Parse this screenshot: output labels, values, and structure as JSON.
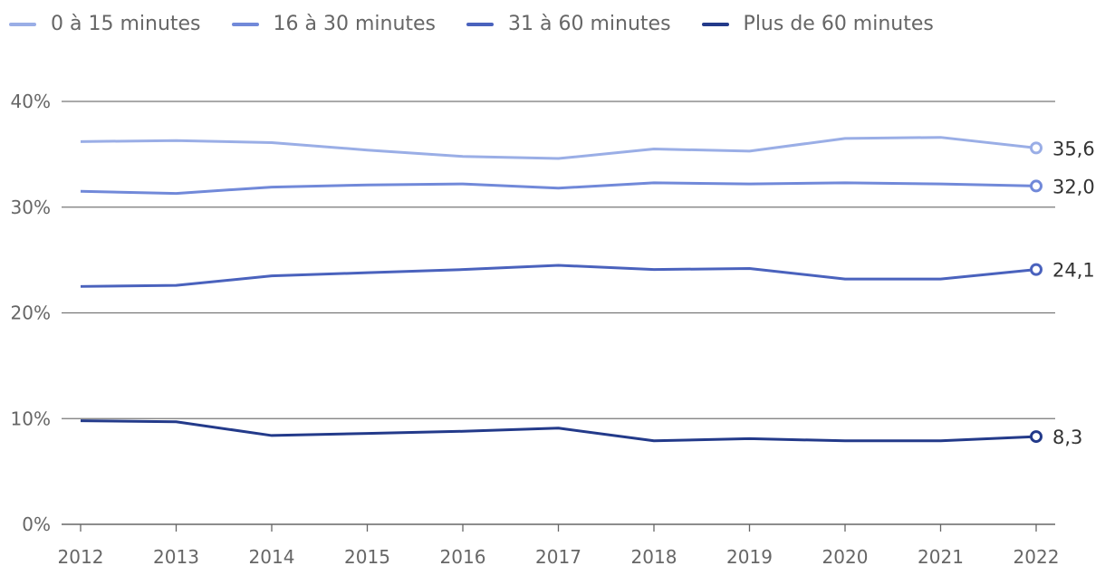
{
  "chart_data": {
    "type": "line",
    "title": "",
    "xlabel": "",
    "ylabel": "",
    "x": [
      2012,
      2013,
      2014,
      2015,
      2016,
      2017,
      2018,
      2019,
      2020,
      2021,
      2022
    ],
    "x_tick_labels": [
      "2012",
      "2013",
      "2014",
      "2015",
      "2016",
      "2017",
      "2018",
      "2019",
      "2020",
      "2021",
      "2022"
    ],
    "ylim": [
      0,
      40
    ],
    "y_ticks": [
      0,
      10,
      20,
      30,
      40
    ],
    "y_tick_labels": [
      "0%",
      "10%",
      "20%",
      "30%",
      "40%"
    ],
    "grid": true,
    "legend_position": "top-left",
    "series": [
      {
        "name": "0 à 15 minutes",
        "color": "#9aaee6",
        "values": [
          36.2,
          36.3,
          36.1,
          35.4,
          34.8,
          34.6,
          35.5,
          35.3,
          36.5,
          36.6,
          35.6
        ],
        "end_label": "35,6"
      },
      {
        "name": "16 à 30 minutes",
        "color": "#7189d9",
        "values": [
          31.5,
          31.3,
          31.9,
          32.1,
          32.2,
          31.8,
          32.3,
          32.2,
          32.3,
          32.2,
          32.0
        ],
        "end_label": "32,0"
      },
      {
        "name": "31 à 60 minutes",
        "color": "#4a62bd",
        "values": [
          22.5,
          22.6,
          23.5,
          23.8,
          24.1,
          24.5,
          24.1,
          24.2,
          23.2,
          23.2,
          24.1
        ],
        "end_label": "24,1"
      },
      {
        "name": "Plus de 60 minutes",
        "color": "#233a8a",
        "values": [
          9.8,
          9.7,
          8.4,
          8.6,
          8.8,
          9.1,
          7.9,
          8.1,
          7.9,
          7.9,
          8.3
        ],
        "end_label": "8,3"
      }
    ]
  }
}
